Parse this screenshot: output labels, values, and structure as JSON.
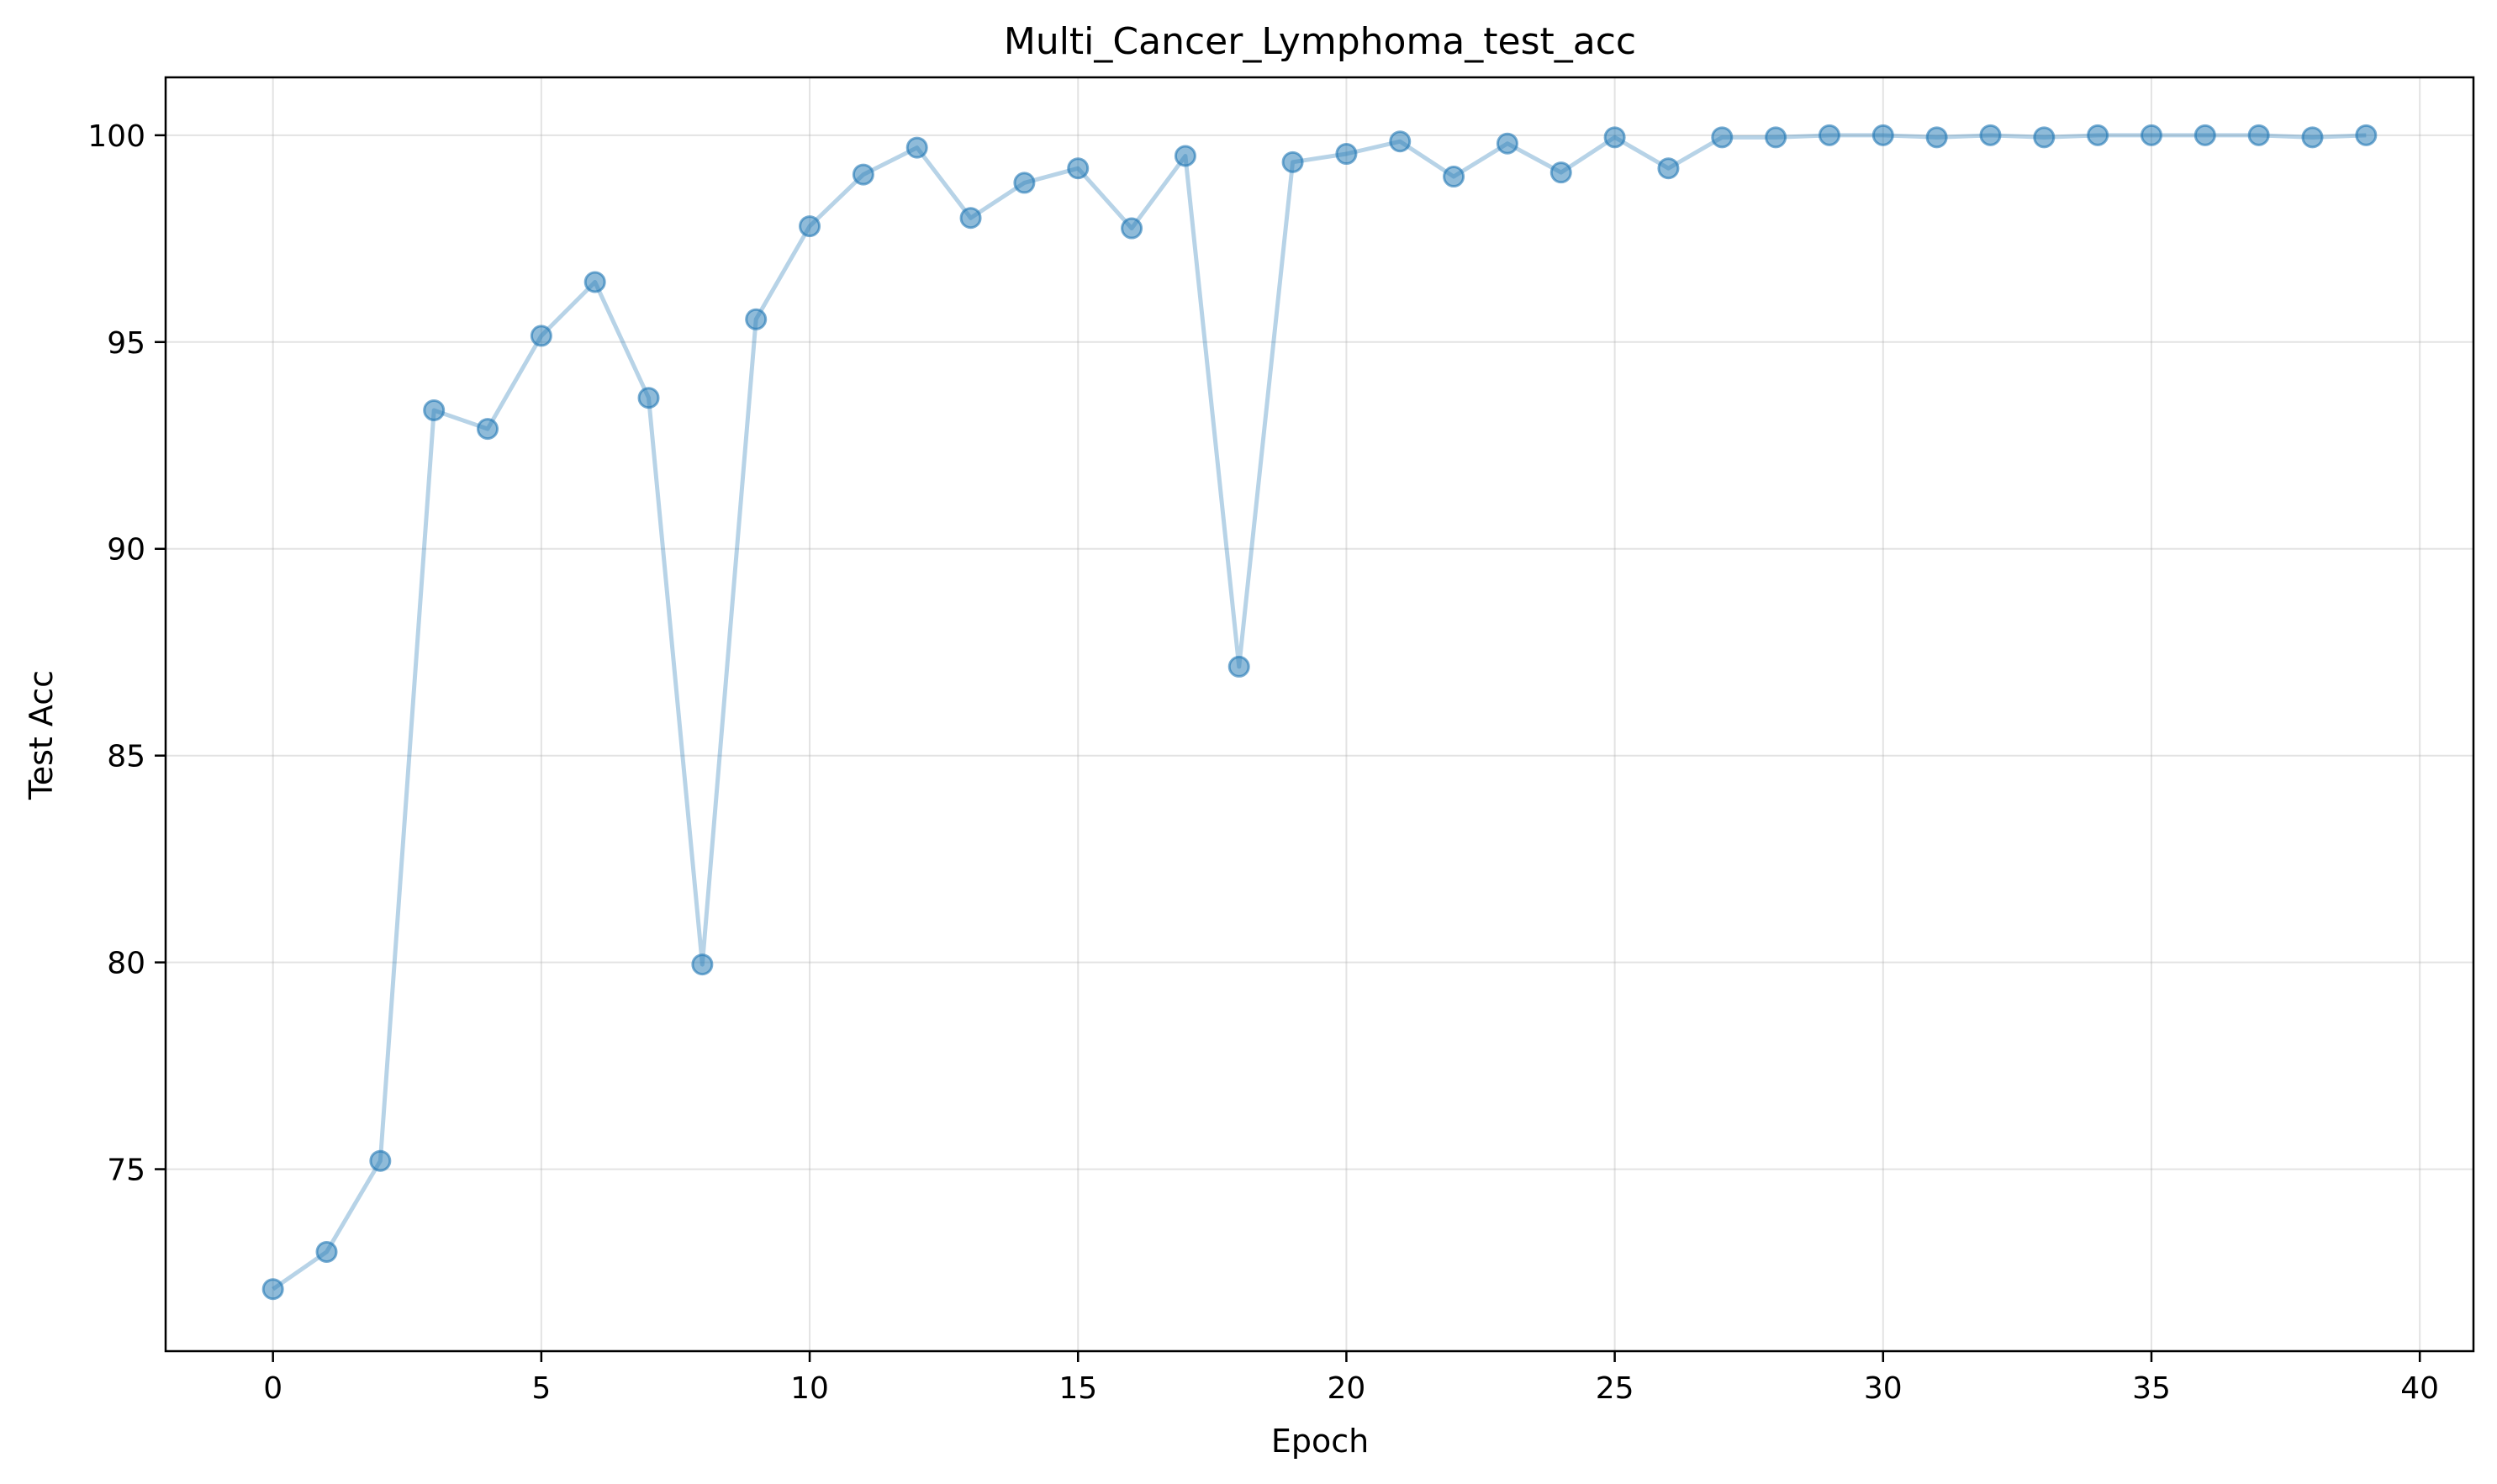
{
  "chart_data": {
    "type": "line",
    "title": "Multi_Cancer_Lymphoma_test_acc",
    "xlabel": "Epoch",
    "ylabel": "Test Acc",
    "xlim": [
      -2.0,
      41.0
    ],
    "ylim": [
      70.6,
      101.4
    ],
    "x_ticks": [
      0,
      5,
      10,
      15,
      20,
      25,
      30,
      35,
      40
    ],
    "y_ticks": [
      75,
      80,
      85,
      90,
      95,
      100
    ],
    "grid": true,
    "legend": "none",
    "series_color": "#1f77b4",
    "series": [
      {
        "x": [
          0,
          1,
          2,
          3,
          4,
          5,
          6,
          7,
          8,
          9,
          10,
          11,
          12,
          13,
          14,
          15,
          16,
          17,
          18,
          19,
          20,
          21,
          22,
          23,
          24,
          25,
          26,
          27,
          28,
          29,
          30,
          31,
          32,
          33,
          34,
          35,
          36,
          37,
          38,
          39
        ],
        "values": [
          72.1,
          73.0,
          75.2,
          93.35,
          92.9,
          95.15,
          96.45,
          93.65,
          79.95,
          95.55,
          97.8,
          99.05,
          99.7,
          98.0,
          98.85,
          99.2,
          97.75,
          99.5,
          87.15,
          99.35,
          99.55,
          99.85,
          99.0,
          99.8,
          99.1,
          99.95,
          99.2,
          99.95,
          99.95,
          100.0,
          100.0,
          99.95,
          100.0,
          99.95,
          100.0,
          100.0,
          100.0,
          100.0,
          99.95,
          100.0
        ]
      }
    ]
  }
}
